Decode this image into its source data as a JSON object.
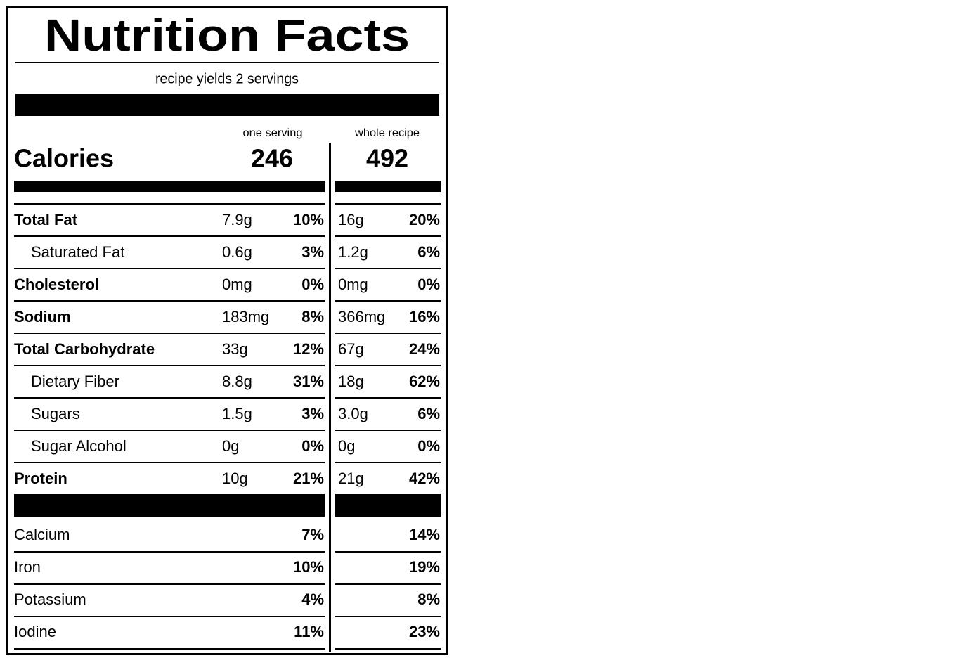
{
  "header": {
    "title": "Nutrition Facts",
    "subtitle": "recipe yields 2 servings"
  },
  "columns": [
    "one serving",
    "whole recipe"
  ],
  "calories": {
    "label": "Calories",
    "values": [
      "246",
      "492"
    ]
  },
  "nutrients": [
    {
      "name": "Total Fat",
      "sub": false,
      "serving_amount": "7.9g",
      "serving_dv": "10%",
      "recipe_amount": "16g",
      "recipe_dv": "20%"
    },
    {
      "name": "Saturated Fat",
      "sub": true,
      "serving_amount": "0.6g",
      "serving_dv": "3%",
      "recipe_amount": "1.2g",
      "recipe_dv": "6%"
    },
    {
      "name": "Cholesterol",
      "sub": false,
      "serving_amount": "0mg",
      "serving_dv": "0%",
      "recipe_amount": "0mg",
      "recipe_dv": "0%"
    },
    {
      "name": "Sodium",
      "sub": false,
      "serving_amount": "183mg",
      "serving_dv": "8%",
      "recipe_amount": "366mg",
      "recipe_dv": "16%"
    },
    {
      "name": "Total Carbohydrate",
      "sub": false,
      "serving_amount": "33g",
      "serving_dv": "12%",
      "recipe_amount": "67g",
      "recipe_dv": "24%"
    },
    {
      "name": "Dietary Fiber",
      "sub": true,
      "serving_amount": "8.8g",
      "serving_dv": "31%",
      "recipe_amount": "18g",
      "recipe_dv": "62%"
    },
    {
      "name": "Sugars",
      "sub": true,
      "serving_amount": "1.5g",
      "serving_dv": "3%",
      "recipe_amount": "3.0g",
      "recipe_dv": "6%"
    },
    {
      "name": "Sugar Alcohol",
      "sub": true,
      "serving_amount": "0g",
      "serving_dv": "0%",
      "recipe_amount": "0g",
      "recipe_dv": "0%"
    },
    {
      "name": "Protein",
      "sub": false,
      "serving_amount": "10g",
      "serving_dv": "21%",
      "recipe_amount": "21g",
      "recipe_dv": "42%"
    }
  ],
  "minerals": [
    {
      "name": "Calcium",
      "serving_dv": "7%",
      "recipe_dv": "14%"
    },
    {
      "name": "Iron",
      "serving_dv": "10%",
      "recipe_dv": "19%"
    },
    {
      "name": "Potassium",
      "serving_dv": "4%",
      "recipe_dv": "8%"
    },
    {
      "name": "Iodine",
      "serving_dv": "11%",
      "recipe_dv": "23%"
    }
  ]
}
